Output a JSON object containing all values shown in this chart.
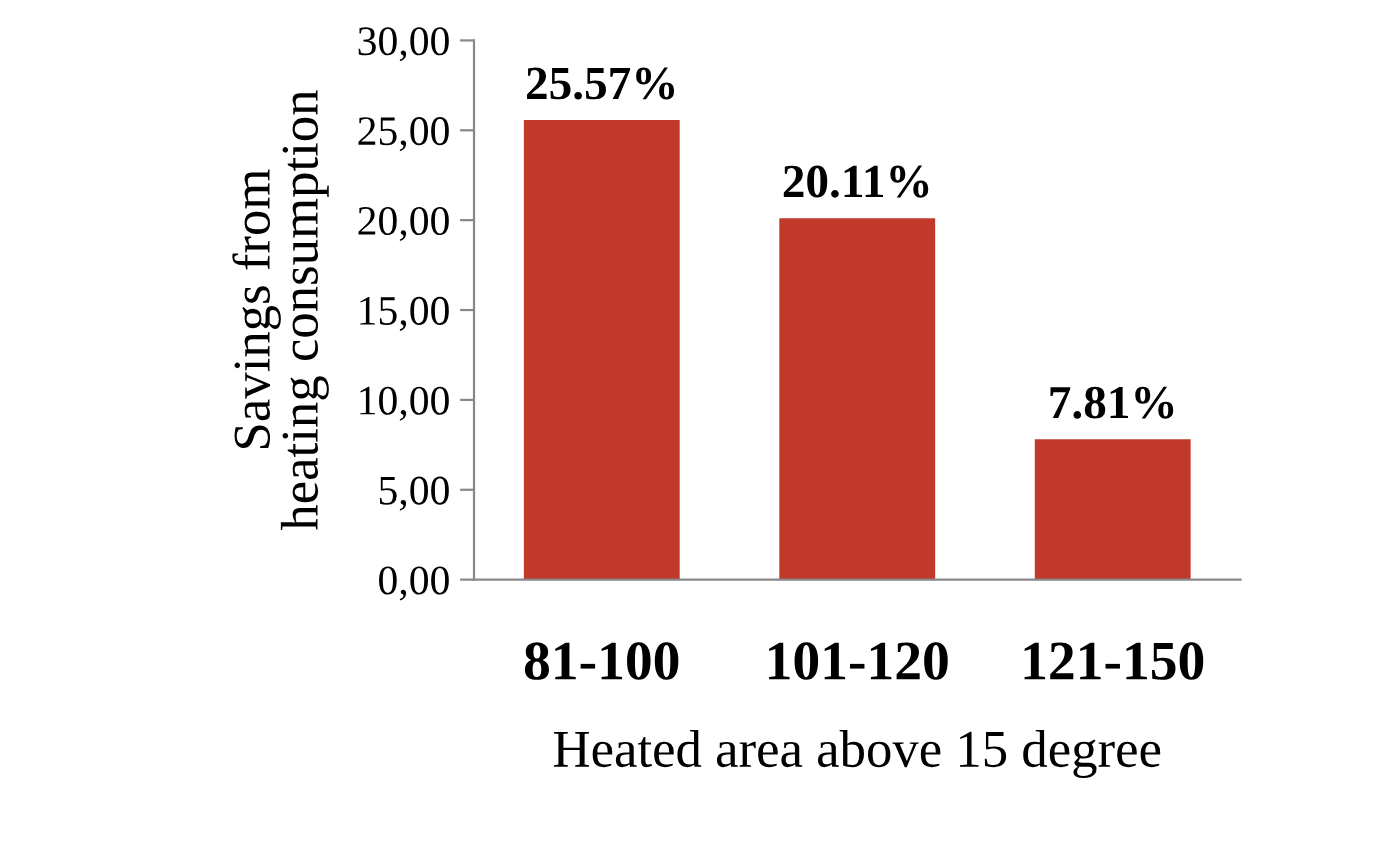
{
  "chart_data": {
    "type": "bar",
    "categories": [
      "81-100",
      "101-120",
      "121-150"
    ],
    "values": [
      25.57,
      20.11,
      7.81
    ],
    "value_labels": [
      "25.57%",
      "20.11%",
      "7.81%"
    ],
    "color": "#c0392b",
    "xlabel": "Heated area above 15 degree",
    "ylabel": "Savings from\nheating consumption",
    "ylim": [
      0,
      30
    ],
    "yticks": [
      {
        "value": 0,
        "label": "0,00"
      },
      {
        "value": 5,
        "label": "5,00"
      },
      {
        "value": 10,
        "label": "10,00"
      },
      {
        "value": 15,
        "label": "15,00"
      },
      {
        "value": 20,
        "label": "20,00"
      },
      {
        "value": 25,
        "label": "25,00"
      },
      {
        "value": 30,
        "label": "30,00"
      }
    ],
    "grid": false,
    "legend": false
  }
}
